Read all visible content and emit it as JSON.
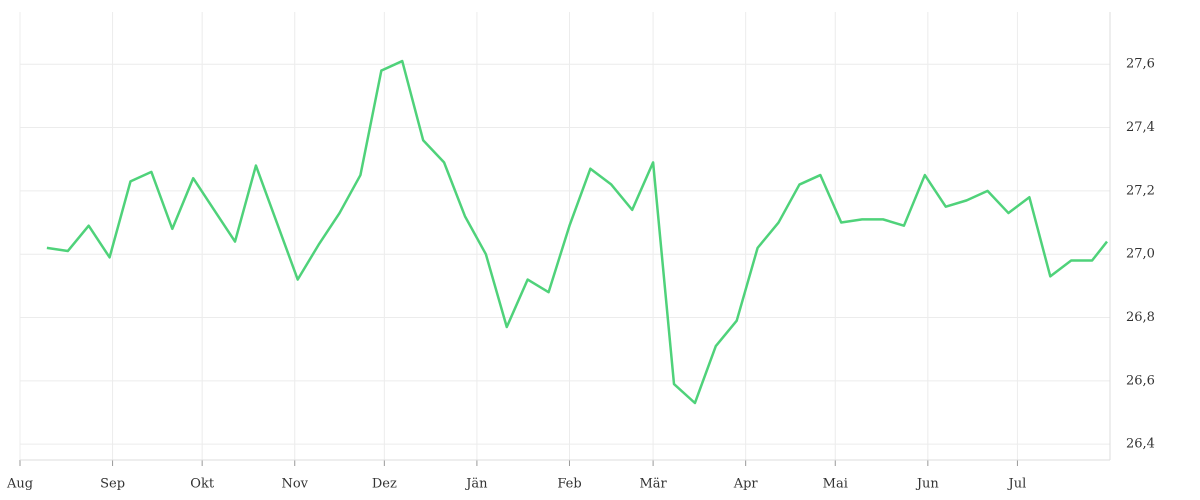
{
  "chart_data": {
    "type": "line",
    "x": [
      9,
      16,
      23,
      30,
      37,
      44,
      51,
      58,
      65,
      72,
      79,
      86,
      93,
      100,
      107,
      114,
      121,
      128,
      135,
      142,
      149,
      156,
      163,
      170,
      177,
      184,
      191,
      198,
      205,
      212,
      219,
      226,
      233,
      240,
      247,
      254,
      261,
      268,
      275,
      282,
      289,
      296,
      303,
      310,
      317,
      324,
      331,
      338,
      345,
      352,
      359,
      364
    ],
    "series": [
      {
        "color": "#4fd27a",
        "values": [
          27.02,
          27.01,
          27.09,
          26.99,
          27.23,
          27.26,
          27.08,
          27.24,
          27.14,
          27.04,
          27.28,
          27.1,
          26.92,
          27.03,
          27.13,
          27.25,
          27.58,
          27.61,
          27.36,
          27.29,
          27.12,
          27.0,
          26.77,
          26.92,
          26.88,
          27.09,
          27.27,
          27.22,
          27.14,
          27.29,
          26.59,
          26.53,
          26.71,
          26.79,
          27.02,
          27.1,
          27.22,
          27.25,
          27.1,
          27.11,
          27.11,
          27.09,
          27.25,
          27.15,
          27.17,
          27.2,
          27.13,
          27.18,
          26.93,
          26.98,
          26.98,
          27.04
        ]
      }
    ],
    "xlim": [
      0,
      365
    ],
    "xticks": [
      {
        "value": 0,
        "label": "Aug"
      },
      {
        "value": 31,
        "label": "Sep"
      },
      {
        "value": 61,
        "label": "Okt"
      },
      {
        "value": 92,
        "label": "Nov"
      },
      {
        "value": 122,
        "label": "Dez"
      },
      {
        "value": 153,
        "label": "Jän"
      },
      {
        "value": 184,
        "label": "Feb"
      },
      {
        "value": 212,
        "label": "Mär"
      },
      {
        "value": 243,
        "label": "Apr"
      },
      {
        "value": 273,
        "label": "Mai"
      },
      {
        "value": 304,
        "label": "Jun"
      },
      {
        "value": 334,
        "label": "Jul"
      }
    ],
    "ylim": [
      26.35,
      27.765
    ],
    "yticks": [
      {
        "value": 26.4,
        "label": "26,4"
      },
      {
        "value": 26.6,
        "label": "26,6"
      },
      {
        "value": 26.8,
        "label": "26,8"
      },
      {
        "value": 27.0,
        "label": "27,0"
      },
      {
        "value": 27.2,
        "label": "27,2"
      },
      {
        "value": 27.4,
        "label": "27,4"
      },
      {
        "value": 27.6,
        "label": "27,6"
      }
    ],
    "grid": true
  }
}
